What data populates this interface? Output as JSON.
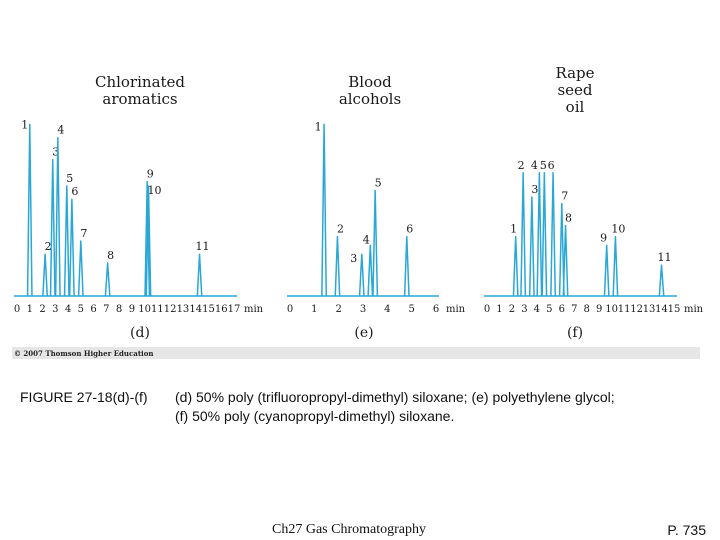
{
  "chart_data": [
    {
      "type": "line",
      "panel": "(d)",
      "title": [
        "Chlorinated",
        "aromatics"
      ],
      "xlabel": "min",
      "xticks": [
        "0",
        "1",
        "2",
        "3",
        "4",
        "5",
        "6",
        "7",
        "8",
        "9",
        "10",
        "11",
        "12",
        "13",
        "14",
        "15",
        "16",
        "17"
      ],
      "xlim": [
        0,
        17
      ],
      "ylim": [
        0,
        100
      ],
      "color": "#2aa7d6",
      "peaks": [
        {
          "label": "1",
          "x": 1.0,
          "h": 78
        },
        {
          "label": "2",
          "x": 2.2,
          "h": 19
        },
        {
          "label": "3",
          "x": 2.8,
          "h": 62
        },
        {
          "label": "4",
          "x": 3.2,
          "h": 72
        },
        {
          "label": "5",
          "x": 3.9,
          "h": 50
        },
        {
          "label": "6",
          "x": 4.3,
          "h": 44
        },
        {
          "label": "7",
          "x": 5.0,
          "h": 25
        },
        {
          "label": "8",
          "x": 7.1,
          "h": 15
        },
        {
          "label": "9",
          "x": 10.2,
          "h": 52
        },
        {
          "label": "10",
          "x": 10.3,
          "h": 50
        },
        {
          "label": "11",
          "x": 14.3,
          "h": 19
        }
      ]
    },
    {
      "type": "line",
      "panel": "(e)",
      "title": [
        "Blood",
        "alcohols"
      ],
      "xlabel": "min",
      "xticks": [
        "0",
        "1",
        "2",
        "3",
        "4",
        "5",
        "6"
      ],
      "xlim": [
        0,
        6
      ],
      "ylim": [
        0,
        100
      ],
      "color": "#2aa7d6",
      "peaks": [
        {
          "label": "1",
          "x": 1.4,
          "h": 78
        },
        {
          "label": "2",
          "x": 1.95,
          "h": 27
        },
        {
          "label": "3",
          "x": 2.95,
          "h": 19
        },
        {
          "label": "4",
          "x": 3.3,
          "h": 23
        },
        {
          "label": "5",
          "x": 3.5,
          "h": 48
        },
        {
          "label": "6",
          "x": 4.8,
          "h": 27
        }
      ]
    },
    {
      "type": "line",
      "panel": "(f)",
      "title": [
        "Rape",
        "seed",
        "oil"
      ],
      "xlabel": "min",
      "xticks": [
        "0",
        "1",
        "2",
        "3",
        "4",
        "5",
        "6",
        "7",
        "8",
        "9",
        "10",
        "11",
        "12",
        "13",
        "14",
        "15"
      ],
      "xlim": [
        0,
        15
      ],
      "ylim": [
        0,
        100
      ],
      "color": "#2aa7d6",
      "peaks": [
        {
          "label": "1",
          "x": 2.3,
          "h": 27
        },
        {
          "label": "2",
          "x": 2.9,
          "h": 56
        },
        {
          "label": "3",
          "x": 3.6,
          "h": 45
        },
        {
          "label": "4",
          "x": 4.2,
          "h": 56
        },
        {
          "label": "5",
          "x": 4.6,
          "h": 56
        },
        {
          "label": "6",
          "x": 5.3,
          "h": 56
        },
        {
          "label": "7",
          "x": 6.0,
          "h": 42
        },
        {
          "label": "8",
          "x": 6.3,
          "h": 32
        },
        {
          "label": "9",
          "x": 9.6,
          "h": 23
        },
        {
          "label": "10",
          "x": 10.3,
          "h": 27
        },
        {
          "label": "11",
          "x": 14.0,
          "h": 14
        }
      ]
    }
  ],
  "copyright": "© 2007 Thomson Higher Education",
  "caption": {
    "label": "FIGURE 27-18(d)-(f)",
    "line1": "(d) 50% poly (trifluoropropyl-dimethyl) siloxane; (e) polyethylene glycol;",
    "line2": "(f) 50% poly (cyanopropyl-dimethyl) siloxane."
  },
  "footer": {
    "chapter": "Ch27 Gas Chromatography",
    "page": "P. 735"
  }
}
